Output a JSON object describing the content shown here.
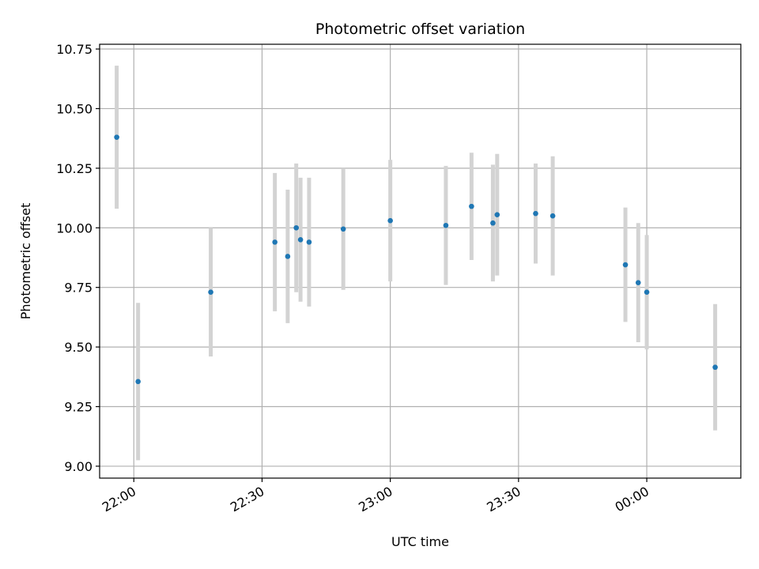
{
  "chart_data": {
    "type": "scatter",
    "title": "Photometric offset variation",
    "xlabel": "UTC time",
    "ylabel": "Photometric offset",
    "grid": true,
    "xlim": [
      "21:52",
      "00:22"
    ],
    "ylim": [
      8.95,
      10.77
    ],
    "x_ticks": [
      "22:00",
      "22:30",
      "23:00",
      "23:30",
      "00:00"
    ],
    "y_ticks": [
      "9.00",
      "9.25",
      "9.50",
      "9.75",
      "10.00",
      "10.25",
      "10.50",
      "10.75"
    ],
    "colors": {
      "point": "#1f77b4",
      "errorbar": "#d3d3d3",
      "grid": "#b0b0b0"
    },
    "series": [
      {
        "points": [
          {
            "x": "21:56",
            "y": 10.38,
            "err": 0.3
          },
          {
            "x": "22:01",
            "y": 9.355,
            "err": 0.33
          },
          {
            "x": "22:18",
            "y": 9.73,
            "err": 0.27
          },
          {
            "x": "22:33",
            "y": 9.94,
            "err": 0.29
          },
          {
            "x": "22:36",
            "y": 9.88,
            "err": 0.28
          },
          {
            "x": "22:38",
            "y": 10.0,
            "err": 0.27
          },
          {
            "x": "22:39",
            "y": 9.95,
            "err": 0.26
          },
          {
            "x": "22:41",
            "y": 9.94,
            "err": 0.27
          },
          {
            "x": "22:49",
            "y": 9.995,
            "err": 0.255
          },
          {
            "x": "23:00",
            "y": 10.03,
            "err": 0.255
          },
          {
            "x": "23:13",
            "y": 10.01,
            "err": 0.25
          },
          {
            "x": "23:19",
            "y": 10.09,
            "err": 0.225
          },
          {
            "x": "23:24",
            "y": 10.02,
            "err": 0.245
          },
          {
            "x": "23:25",
            "y": 10.055,
            "err": 0.255
          },
          {
            "x": "23:34",
            "y": 10.06,
            "err": 0.21
          },
          {
            "x": "23:38",
            "y": 10.05,
            "err": 0.25
          },
          {
            "x": "23:55",
            "y": 9.845,
            "err": 0.24
          },
          {
            "x": "23:58",
            "y": 9.77,
            "err": 0.25
          },
          {
            "x": "00:00",
            "y": 9.73,
            "err": 0.24
          },
          {
            "x": "00:16",
            "y": 9.415,
            "err": 0.265
          }
        ]
      }
    ]
  }
}
